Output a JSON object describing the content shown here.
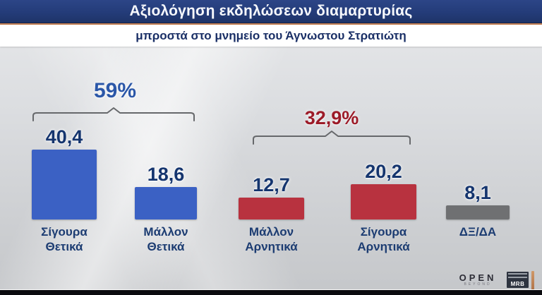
{
  "header": {
    "title": "Αξιολόγηση εκδηλώσεων διαμαρτυρίας",
    "subtitle": "μπροστά στο μνημείο του Άγνωστου Στρατιώτη"
  },
  "chart_data": {
    "type": "bar",
    "title": "Αξιολόγηση εκδηλώσεων διαμαρτυρίας",
    "subtitle": "μπροστά στο μνημείο του Άγνωστου Στρατιώτη",
    "categories": [
      "Σίγουρα Θετικά",
      "Μάλλον Θετικά",
      "Μάλλον Αρνητικά",
      "Σίγουρα Αρνητικά",
      "ΔΞ/ΔΑ"
    ],
    "values": [
      40.4,
      18.6,
      12.7,
      20.2,
      8.1
    ],
    "value_labels": [
      "40,4",
      "18,6",
      "12,7",
      "20,2",
      "8,1"
    ],
    "bar_colors": [
      "#3b61c4",
      "#3b61c4",
      "#b8323f",
      "#b8323f",
      "#6f7072"
    ],
    "groups": [
      {
        "label": "59%",
        "members": [
          "Σίγουρα Θετικά",
          "Μάλλον Θετικά"
        ],
        "color": "#2b57a8"
      },
      {
        "label": "32,9%",
        "members": [
          "Μάλλον Αρνητικά",
          "Σίγουρα Αρνητικά"
        ],
        "color": "#9c1b28"
      }
    ],
    "ylim": [
      0,
      45
    ],
    "grid": false,
    "legend": false
  },
  "bars": [
    {
      "value_label": "40,4",
      "label": "Σίγουρα\nΘετικά",
      "color": "#3b61c4"
    },
    {
      "value_label": "18,6",
      "label": "Μάλλον\nΘετικά",
      "color": "#3b61c4"
    },
    {
      "value_label": "12,7",
      "label": "Μάλλον\nΑρνητικά",
      "color": "#b8323f"
    },
    {
      "value_label": "20,2",
      "label": "Σίγουρα\nΑρνητικά",
      "color": "#b8323f"
    },
    {
      "value_label": "8,1",
      "label": "ΔΞ/ΔΑ",
      "color": "#6f7072"
    }
  ],
  "footer": {
    "open_logo": "OPEN",
    "open_tagline": "BEYOND",
    "mrb_logo": "MRB"
  },
  "colors": {
    "banner_navy": "#243c79",
    "accent_orange": "#c8805a",
    "positive_blue": "#3b61c4",
    "negative_red": "#b8323f",
    "neutral_gray": "#6f7072",
    "value_text_navy": "#15356e",
    "bracket_gray": "#66686b"
  }
}
